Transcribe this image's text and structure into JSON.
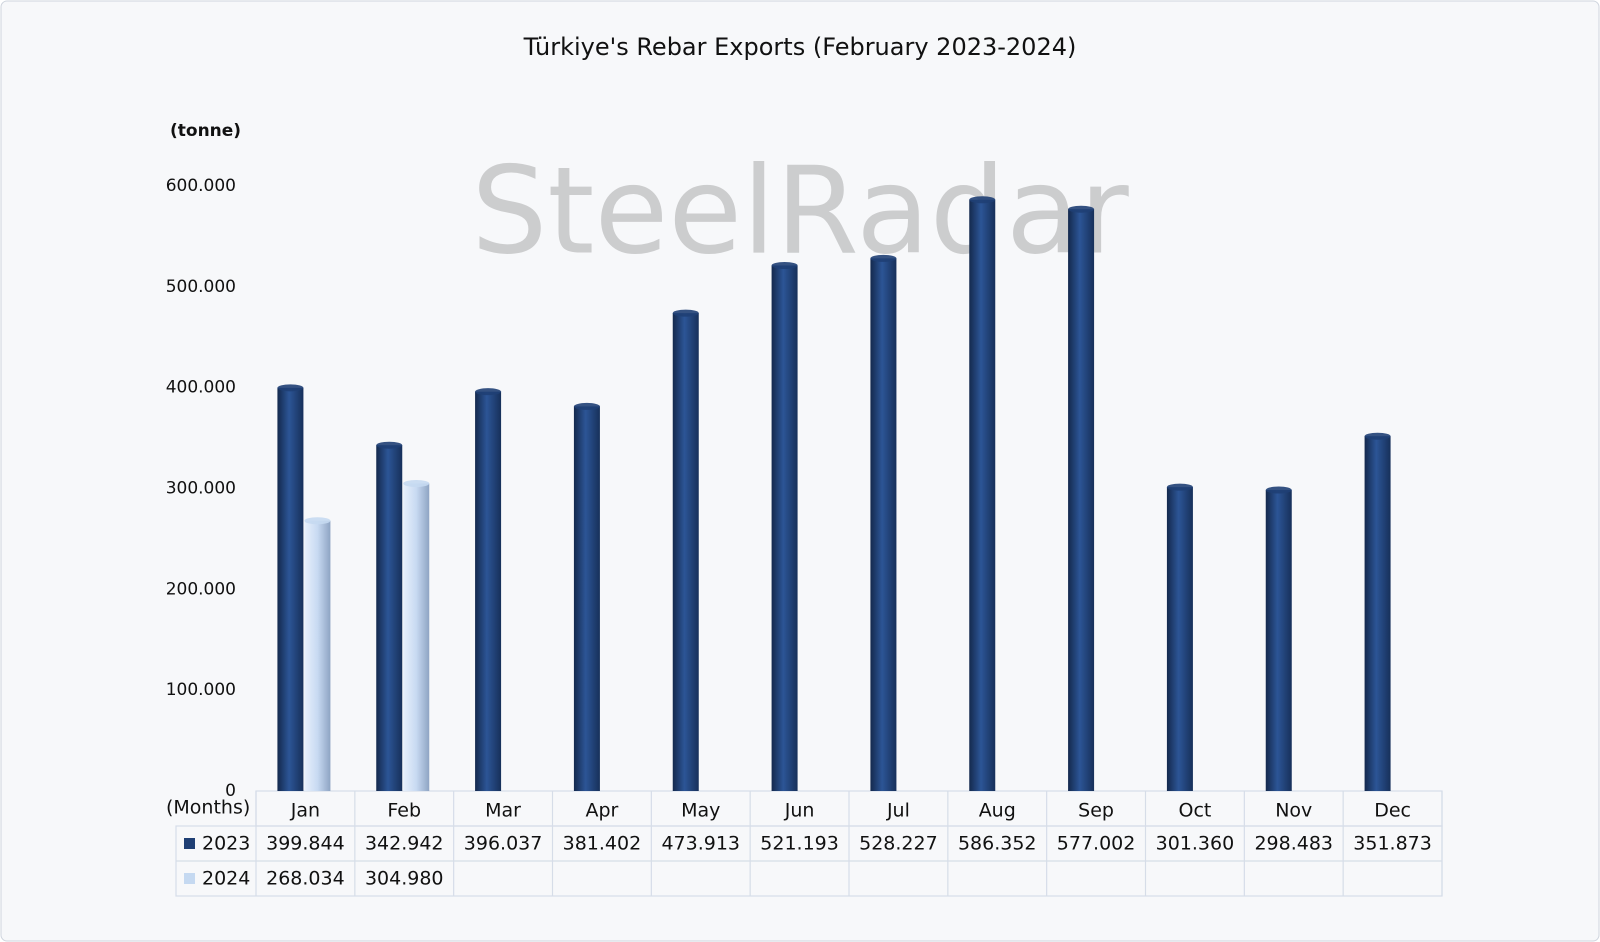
{
  "chart_data": {
    "type": "bar",
    "title": "Türkiye's Rebar Exports (February 2023-2024)",
    "y_label": "(tonne)",
    "x_label": "(Months)",
    "watermark": "SteelRadar",
    "categories": [
      "Jan",
      "Feb",
      "Mar",
      "Apr",
      "May",
      "Jun",
      "Jul",
      "Aug",
      "Sep",
      "Oct",
      "Nov",
      "Dec"
    ],
    "series": [
      {
        "name": "2023",
        "color": "#1f3f74",
        "values": [
          399844,
          342942,
          396037,
          381402,
          473913,
          521193,
          528227,
          586352,
          577002,
          301360,
          298483,
          351873
        ],
        "value_labels": [
          "399.844",
          "342.942",
          "396.037",
          "381.402",
          "473.913",
          "521.193",
          "528.227",
          "586.352",
          "577.002",
          "301.360",
          "298.483",
          "351.873"
        ]
      },
      {
        "name": "2024",
        "color": "#c5d9f1",
        "values": [
          268034,
          304980,
          null,
          null,
          null,
          null,
          null,
          null,
          null,
          null,
          null,
          null
        ],
        "value_labels": [
          "268.034",
          "304.980",
          null,
          null,
          null,
          null,
          null,
          null,
          null,
          null,
          null,
          null
        ]
      }
    ],
    "ylim": [
      0,
      600000
    ],
    "yticks": [
      0,
      {
        "value": 100000,
        "label": "100.000"
      },
      {
        "value": 200000,
        "label": "200.000"
      },
      {
        "value": 300000,
        "label": "300.000"
      },
      {
        "value": 400000,
        "label": "400.000"
      },
      {
        "value": 500000,
        "label": "500.000"
      },
      {
        "value": 600000,
        "label": "600.000"
      }
    ],
    "grid": false
  }
}
